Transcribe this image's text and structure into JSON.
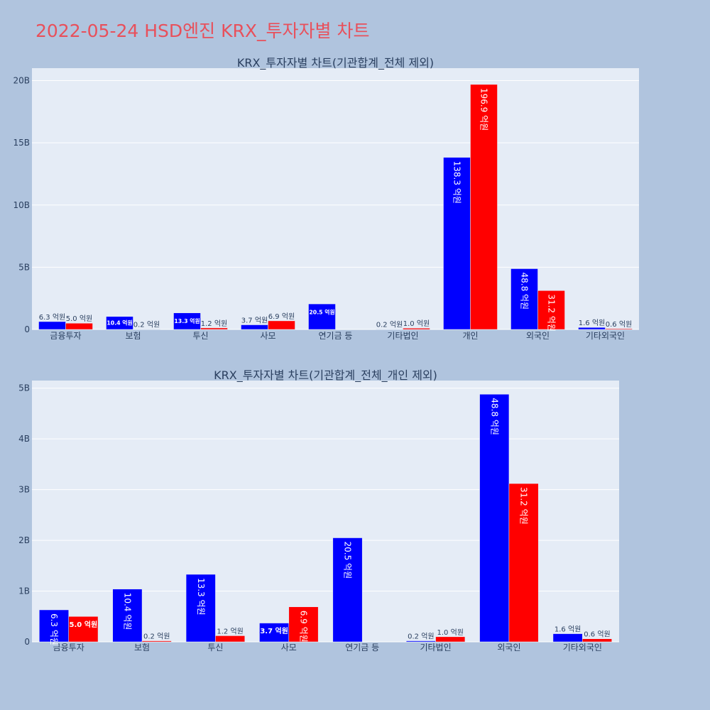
{
  "title": "2022-05-24 HSD엔진 KRX_투자자별 차트",
  "colors": {
    "series_a": "#0000ff",
    "series_b": "#ff0000",
    "plot_bg": "#e5ecf6",
    "paper_bg": "#b0c4de"
  },
  "chart_data": [
    {
      "type": "bar",
      "title": "KRX_투자자별 차트(기관합계_전체 제외)",
      "categories": [
        "금융투자",
        "보험",
        "투신",
        "사모",
        "연기금 등",
        "기타법인",
        "개인",
        "외국인",
        "기타외국인"
      ],
      "ylim": [
        0,
        21000000000
      ],
      "yticks": [
        0,
        5000000000,
        10000000000,
        15000000000,
        20000000000
      ],
      "ytick_labels": [
        "0",
        "5B",
        "10B",
        "15B",
        "20B"
      ],
      "grid": true,
      "series": [
        {
          "values": [
            630000000,
            1040000000,
            1330000000,
            370000000,
            2050000000,
            20000000,
            13830000000,
            4880000000,
            160000000
          ],
          "labels": [
            "6.3 억원",
            "10.4 억원",
            "13.3 억원",
            "3.7 억원",
            "20.5 억원",
            "0.2 억원",
            "138.3 억원",
            "48.8 억원",
            "1.6 억원"
          ]
        },
        {
          "values": [
            500000000,
            20000000,
            120000000,
            690000000,
            0,
            100000000,
            19690000000,
            3120000000,
            60000000
          ],
          "labels": [
            "5.0 억원",
            "0.2 억원",
            "1.2 억원",
            "6.9 억원",
            "",
            "1.0 억원",
            "196.9 억원",
            "31.2 억원",
            "0.6 억원"
          ]
        }
      ]
    },
    {
      "type": "bar",
      "title": "KRX_투자자별 차트(기관합계_전체_개인 제외)",
      "categories": [
        "금융투자",
        "보험",
        "투신",
        "사모",
        "연기금 등",
        "기타법인",
        "외국인",
        "기타외국인"
      ],
      "ylim": [
        0,
        5150000000
      ],
      "yticks": [
        0,
        1000000000,
        2000000000,
        3000000000,
        4000000000,
        5000000000
      ],
      "ytick_labels": [
        "0",
        "1B",
        "2B",
        "3B",
        "4B",
        "5B"
      ],
      "grid": true,
      "series": [
        {
          "values": [
            630000000,
            1040000000,
            1330000000,
            370000000,
            2050000000,
            20000000,
            4880000000,
            160000000
          ],
          "labels": [
            "6.3 억원",
            "10.4 억원",
            "13.3 억원",
            "3.7 억원",
            "20.5 억원",
            "0.2 억원",
            "48.8 억원",
            "1.6 억원"
          ]
        },
        {
          "values": [
            500000000,
            20000000,
            120000000,
            690000000,
            0,
            100000000,
            3120000000,
            60000000
          ],
          "labels": [
            "5.0 억원",
            "0.2 억원",
            "1.2 억원",
            "6.9 억원",
            "",
            "1.0 억원",
            "31.2 억원",
            "0.6 억원"
          ]
        }
      ]
    }
  ]
}
